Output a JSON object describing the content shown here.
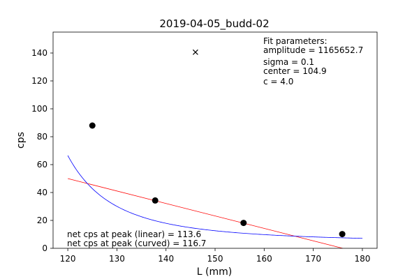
{
  "chart_data": {
    "type": "scatter",
    "title": "2019-04-05_budd-02",
    "xlabel": "L (mm)",
    "ylabel": "cps",
    "xlim": [
      117,
      183
    ],
    "ylim": [
      0,
      155
    ],
    "x_ticks": [
      120,
      130,
      140,
      150,
      160,
      170,
      180
    ],
    "y_ticks": [
      0,
      20,
      40,
      60,
      80,
      100,
      120,
      140
    ],
    "grid": false,
    "points": [
      {
        "x": 125.0,
        "y": 88.0
      },
      {
        "x": 137.8,
        "y": 34.3
      },
      {
        "x": 155.8,
        "y": 18.2
      },
      {
        "x": 175.9,
        "y": 10.2
      }
    ],
    "cross_marker": {
      "x": 146.0,
      "y": 140.6
    },
    "linear_fit": {
      "x": [
        120,
        176
      ],
      "y": [
        50.0,
        0.0
      ],
      "color": "#ff0000"
    },
    "curved_fit": {
      "color": "#0000ff",
      "amplitude": 1165652.7,
      "sigma": 0.1,
      "center": 104.9,
      "c": 4.0,
      "x_range": [
        120,
        180
      ]
    },
    "fit_parameters": {
      "heading": "Fit parameters:",
      "lines": [
        "amplitude = 1165652.7",
        "sigma = 0.1",
        "center = 104.9",
        "c = 4.0"
      ]
    },
    "annotations": [
      "net cps at peak (linear) = 113.6",
      "net cps at peak (curved) = 116.7"
    ]
  }
}
